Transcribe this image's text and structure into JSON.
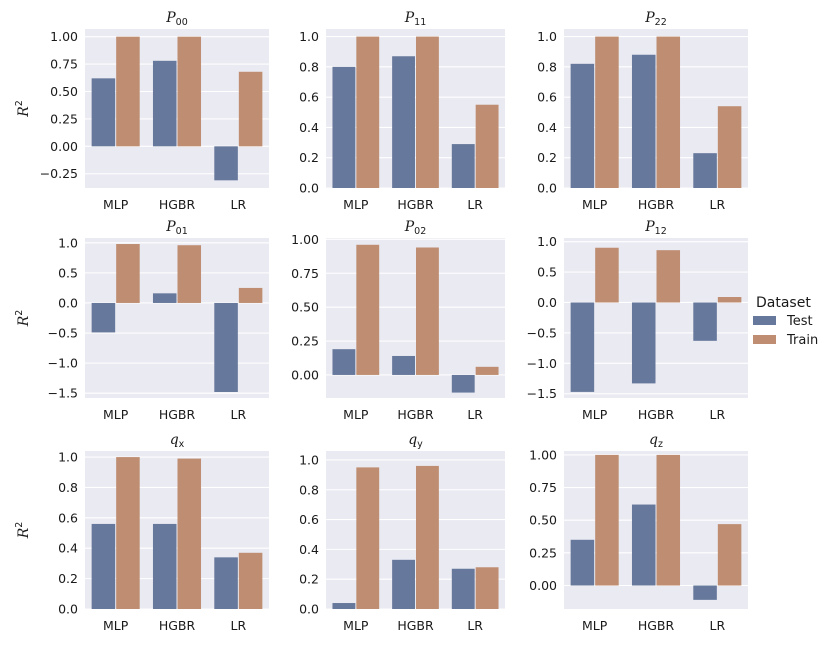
{
  "chart_data": {
    "type": "bar",
    "categories": [
      "MLP",
      "HGBR",
      "LR"
    ],
    "series_names": [
      "Test",
      "Train"
    ],
    "colors": {
      "Test": "#66789b",
      "Train": "#bf8e72",
      "panel_bg": "#eaeaf2",
      "grid": "#ffffff"
    },
    "ylabel": "R²",
    "legend": {
      "title": "Dataset",
      "position": "right-center"
    },
    "panels": [
      {
        "title_base": "P",
        "title_sub": "00",
        "ylim": [
          -0.38,
          1.07
        ],
        "yticks": [
          -0.25,
          0.0,
          0.25,
          0.5,
          0.75,
          1.0
        ],
        "ytick_labels": [
          "−0.25",
          "0.00",
          "0.25",
          "0.50",
          "0.75",
          "1.00"
        ],
        "series": [
          {
            "name": "Test",
            "values": [
              0.62,
              0.78,
              -0.31
            ]
          },
          {
            "name": "Train",
            "values": [
              1.0,
              1.0,
              0.68
            ]
          }
        ]
      },
      {
        "title_base": "P",
        "title_sub": "11",
        "ylim": [
          0.0,
          1.05
        ],
        "yticks": [
          0.0,
          0.2,
          0.4,
          0.6,
          0.8,
          1.0
        ],
        "ytick_labels": [
          "0.0",
          "0.2",
          "0.4",
          "0.6",
          "0.8",
          "1.0"
        ],
        "series": [
          {
            "name": "Test",
            "values": [
              0.8,
              0.87,
              0.29
            ]
          },
          {
            "name": "Train",
            "values": [
              1.0,
              1.0,
              0.55
            ]
          }
        ]
      },
      {
        "title_base": "P",
        "title_sub": "22",
        "ylim": [
          0.0,
          1.05
        ],
        "yticks": [
          0.0,
          0.2,
          0.4,
          0.6,
          0.8,
          1.0
        ],
        "ytick_labels": [
          "0.0",
          "0.2",
          "0.4",
          "0.6",
          "0.8",
          "1.0"
        ],
        "series": [
          {
            "name": "Test",
            "values": [
              0.82,
              0.88,
              0.23
            ]
          },
          {
            "name": "Train",
            "values": [
              1.0,
              1.0,
              0.54
            ]
          }
        ]
      },
      {
        "title_base": "P",
        "title_sub": "01",
        "ylim": [
          -1.58,
          1.08
        ],
        "yticks": [
          -1.5,
          -1.0,
          -0.5,
          0.0,
          0.5,
          1.0
        ],
        "ytick_labels": [
          "−1.5",
          "−1.0",
          "−0.5",
          "0.0",
          "0.5",
          "1.0"
        ],
        "series": [
          {
            "name": "Test",
            "values": [
              -0.49,
              0.16,
              -1.48
            ]
          },
          {
            "name": "Train",
            "values": [
              0.98,
              0.96,
              0.25
            ]
          }
        ]
      },
      {
        "title_base": "P",
        "title_sub": "02",
        "ylim": [
          -0.17,
          1.01
        ],
        "yticks": [
          0.0,
          0.25,
          0.5,
          0.75,
          1.0
        ],
        "ytick_labels": [
          "0.00",
          "0.25",
          "0.50",
          "0.75",
          "1.00"
        ],
        "series": [
          {
            "name": "Test",
            "values": [
              0.19,
              0.14,
              -0.13
            ]
          },
          {
            "name": "Train",
            "values": [
              0.96,
              0.94,
              0.06
            ]
          }
        ]
      },
      {
        "title_base": "P",
        "title_sub": "12",
        "ylim": [
          -1.57,
          1.06
        ],
        "yticks": [
          -1.5,
          -1.0,
          -0.5,
          0.0,
          0.5,
          1.0
        ],
        "ytick_labels": [
          "−1.5",
          "−1.0",
          "−0.5",
          "0.0",
          "0.5",
          "1.0"
        ],
        "series": [
          {
            "name": "Test",
            "values": [
              -1.47,
              -1.33,
              -0.63
            ]
          },
          {
            "name": "Train",
            "values": [
              0.9,
              0.86,
              0.09
            ]
          }
        ]
      },
      {
        "title_base": "q",
        "title_sub": "x",
        "ylim": [
          0.0,
          1.04
        ],
        "yticks": [
          0.0,
          0.2,
          0.4,
          0.6,
          0.8,
          1.0
        ],
        "ytick_labels": [
          "0.0",
          "0.2",
          "0.4",
          "0.6",
          "0.8",
          "1.0"
        ],
        "series": [
          {
            "name": "Test",
            "values": [
              0.56,
              0.56,
              0.34
            ]
          },
          {
            "name": "Train",
            "values": [
              1.0,
              0.99,
              0.37
            ]
          }
        ]
      },
      {
        "title_base": "q",
        "title_sub": "y",
        "ylim": [
          0.0,
          1.06
        ],
        "yticks": [
          0.0,
          0.2,
          0.4,
          0.6,
          0.8,
          1.0
        ],
        "ytick_labels": [
          "0.0",
          "0.2",
          "0.4",
          "0.6",
          "0.8",
          "1.0"
        ],
        "series": [
          {
            "name": "Test",
            "values": [
              0.04,
              0.33,
              0.27
            ]
          },
          {
            "name": "Train",
            "values": [
              0.95,
              0.96,
              0.28
            ]
          }
        ]
      },
      {
        "title_base": "q",
        "title_sub": "z",
        "ylim": [
          -0.18,
          1.03
        ],
        "yticks": [
          0.0,
          0.25,
          0.5,
          0.75,
          1.0
        ],
        "ytick_labels": [
          "0.00",
          "0.25",
          "0.50",
          "0.75",
          "1.00"
        ],
        "series": [
          {
            "name": "Test",
            "values": [
              0.35,
              0.62,
              -0.11
            ]
          },
          {
            "name": "Train",
            "values": [
              1.0,
              1.0,
              0.47
            ]
          }
        ]
      }
    ]
  }
}
